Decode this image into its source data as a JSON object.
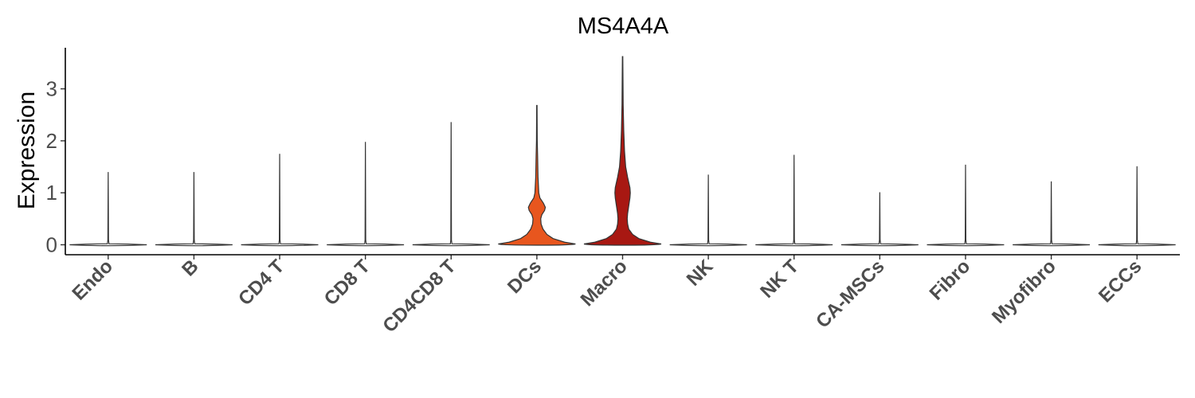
{
  "chart_data": {
    "type": "violin",
    "title": "MS4A4A",
    "xlabel": "",
    "ylabel": "Expression",
    "ylim": [
      0,
      3.7
    ],
    "yticks": [
      "0",
      "1",
      "2",
      "3"
    ],
    "grid": false,
    "legend": "none",
    "categories": [
      "Endo",
      "B",
      "CD4 T",
      "CD8 T",
      "CD4CD8 T",
      "DCs",
      "Macro",
      "NK",
      "NK T",
      "CA-MSCs",
      "Fibro",
      "Myofibro",
      "ECCs"
    ],
    "max_values": [
      1.4,
      1.4,
      1.75,
      1.98,
      2.36,
      2.68,
      3.62,
      1.35,
      1.73,
      1.01,
      1.54,
      1.22,
      1.51
    ],
    "colors": {
      "DCs": "#e8561e",
      "Macro": "#a81812",
      "default": "#ffffff",
      "outline": "#333333"
    },
    "density_profiles": {
      "DCs": [
        [
          0,
          1.0
        ],
        [
          0.05,
          0.72
        ],
        [
          0.12,
          0.42
        ],
        [
          0.2,
          0.26
        ],
        [
          0.3,
          0.16
        ],
        [
          0.4,
          0.11
        ],
        [
          0.5,
          0.1
        ],
        [
          0.58,
          0.13
        ],
        [
          0.66,
          0.2
        ],
        [
          0.72,
          0.22
        ],
        [
          0.8,
          0.17
        ],
        [
          0.9,
          0.08
        ],
        [
          1.0,
          0.05
        ],
        [
          1.3,
          0.03
        ],
        [
          1.7,
          0.02
        ],
        [
          2.0,
          0.01
        ],
        [
          2.68,
          0.005
        ]
      ],
      "Macro": [
        [
          0,
          1.0
        ],
        [
          0.05,
          0.72
        ],
        [
          0.12,
          0.42
        ],
        [
          0.2,
          0.26
        ],
        [
          0.3,
          0.16
        ],
        [
          0.4,
          0.13
        ],
        [
          0.5,
          0.12
        ],
        [
          0.6,
          0.13
        ],
        [
          0.7,
          0.15
        ],
        [
          0.8,
          0.17
        ],
        [
          0.9,
          0.19
        ],
        [
          1.0,
          0.2
        ],
        [
          1.1,
          0.19
        ],
        [
          1.3,
          0.13
        ],
        [
          1.5,
          0.08
        ],
        [
          1.8,
          0.05
        ],
        [
          2.2,
          0.03
        ],
        [
          2.7,
          0.015
        ],
        [
          3.2,
          0.01
        ],
        [
          3.62,
          0.005
        ]
      ]
    }
  }
}
